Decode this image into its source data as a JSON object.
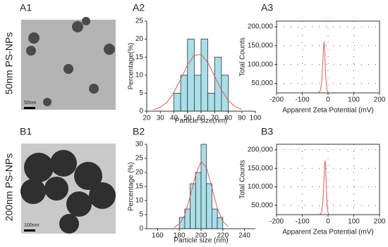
{
  "figure": {
    "row_labels": [
      "50nm PS-NPs",
      "200nm PS-NPs"
    ],
    "panel_labels": [
      "A1",
      "A2",
      "A3",
      "B1",
      "B2",
      "B3"
    ],
    "scale_bar_labels": [
      "50nm",
      "100nm"
    ]
  },
  "chart_data": [
    {
      "type": "histogram",
      "x_label": "Particle size(nm)",
      "y_label": "Percentage(%)",
      "bins": [
        40,
        45,
        50,
        55,
        60,
        65,
        70,
        75,
        80
      ],
      "values": [
        5,
        10,
        20,
        10,
        20,
        5,
        15,
        10
      ],
      "color": "#a9dfe9",
      "fit": {
        "x": [
          25,
          30,
          35,
          40,
          45,
          50,
          55,
          60,
          65,
          70,
          75,
          80,
          85,
          90
        ],
        "values": [
          0.4,
          1.1,
          2.5,
          5.2,
          8.9,
          12.8,
          15.5,
          15.8,
          13.5,
          9.7,
          5.9,
          3.0,
          1.3,
          0.5
        ],
        "color": "#e05a5a"
      },
      "xlim": [
        20,
        100
      ],
      "xticks": [
        20,
        30,
        40,
        50,
        60,
        70,
        80,
        90,
        100
      ],
      "ylim": [
        0,
        25
      ],
      "yticks": [
        0,
        5,
        10,
        15,
        20,
        25
      ]
    },
    {
      "type": "line",
      "x_label": "Apparent Zeta Potential (mV)",
      "y_label": "Total Counts",
      "x": [
        -40,
        -30,
        -25,
        -20,
        -17,
        -15,
        -13,
        -10,
        -5,
        0
      ],
      "values": [
        25000,
        30000,
        50000,
        110000,
        150000,
        160000,
        140000,
        80000,
        35000,
        25000
      ],
      "color": "#e05a5a",
      "xlim": [
        -200,
        200
      ],
      "xticks": [
        -200,
        -100,
        0,
        100,
        200
      ],
      "ylim": [
        25000,
        215000
      ],
      "yticks": [
        {
          "value": 50000,
          "label": "50,000"
        },
        {
          "value": 100000,
          "label": "100,000"
        },
        {
          "value": 150000,
          "label": "150,000"
        },
        {
          "value": 200000,
          "label": "200,000"
        }
      ],
      "grid": true
    },
    {
      "type": "histogram",
      "x_label": "Particle size (nm)",
      "y_label": "Percentage (%)",
      "bins": [
        180,
        185,
        190,
        195,
        200,
        205,
        210,
        215,
        220
      ],
      "values": [
        4,
        7,
        16,
        20,
        30,
        16,
        7,
        4
      ],
      "color": "#a9dfe9",
      "fit": {
        "x": [
          175,
          180,
          185,
          190,
          195,
          200,
          205,
          210,
          215,
          220,
          225
        ],
        "values": [
          0.4,
          1.6,
          4.9,
          11.4,
          19.2,
          23.9,
          21.7,
          14.6,
          7.2,
          2.6,
          0.7
        ],
        "color": "#e05a5a"
      },
      "xlim": [
        150,
        250
      ],
      "xticks": [
        160,
        180,
        200,
        220,
        240
      ],
      "ylim": [
        0,
        30
      ],
      "yticks": [
        0,
        5,
        10,
        15,
        20,
        25,
        30
      ]
    },
    {
      "type": "line",
      "x_label": "Apparent Zeta Potential (mV)",
      "y_label": "Total Counts",
      "x": [
        -35,
        -25,
        -20,
        -15,
        -13,
        -11,
        -9,
        -6,
        -2,
        3
      ],
      "values": [
        25000,
        30000,
        60000,
        130000,
        165000,
        170000,
        145000,
        80000,
        35000,
        25000
      ],
      "color": "#e05a5a",
      "xlim": [
        -200,
        200
      ],
      "xticks": [
        -200,
        -100,
        0,
        100,
        200
      ],
      "ylim": [
        25000,
        215000
      ],
      "yticks": [
        {
          "value": 50000,
          "label": "50,000"
        },
        {
          "value": 100000,
          "label": "100,000"
        },
        {
          "value": 150000,
          "label": "150,000"
        },
        {
          "value": 200000,
          "label": "200,000"
        }
      ],
      "grid": true
    }
  ]
}
